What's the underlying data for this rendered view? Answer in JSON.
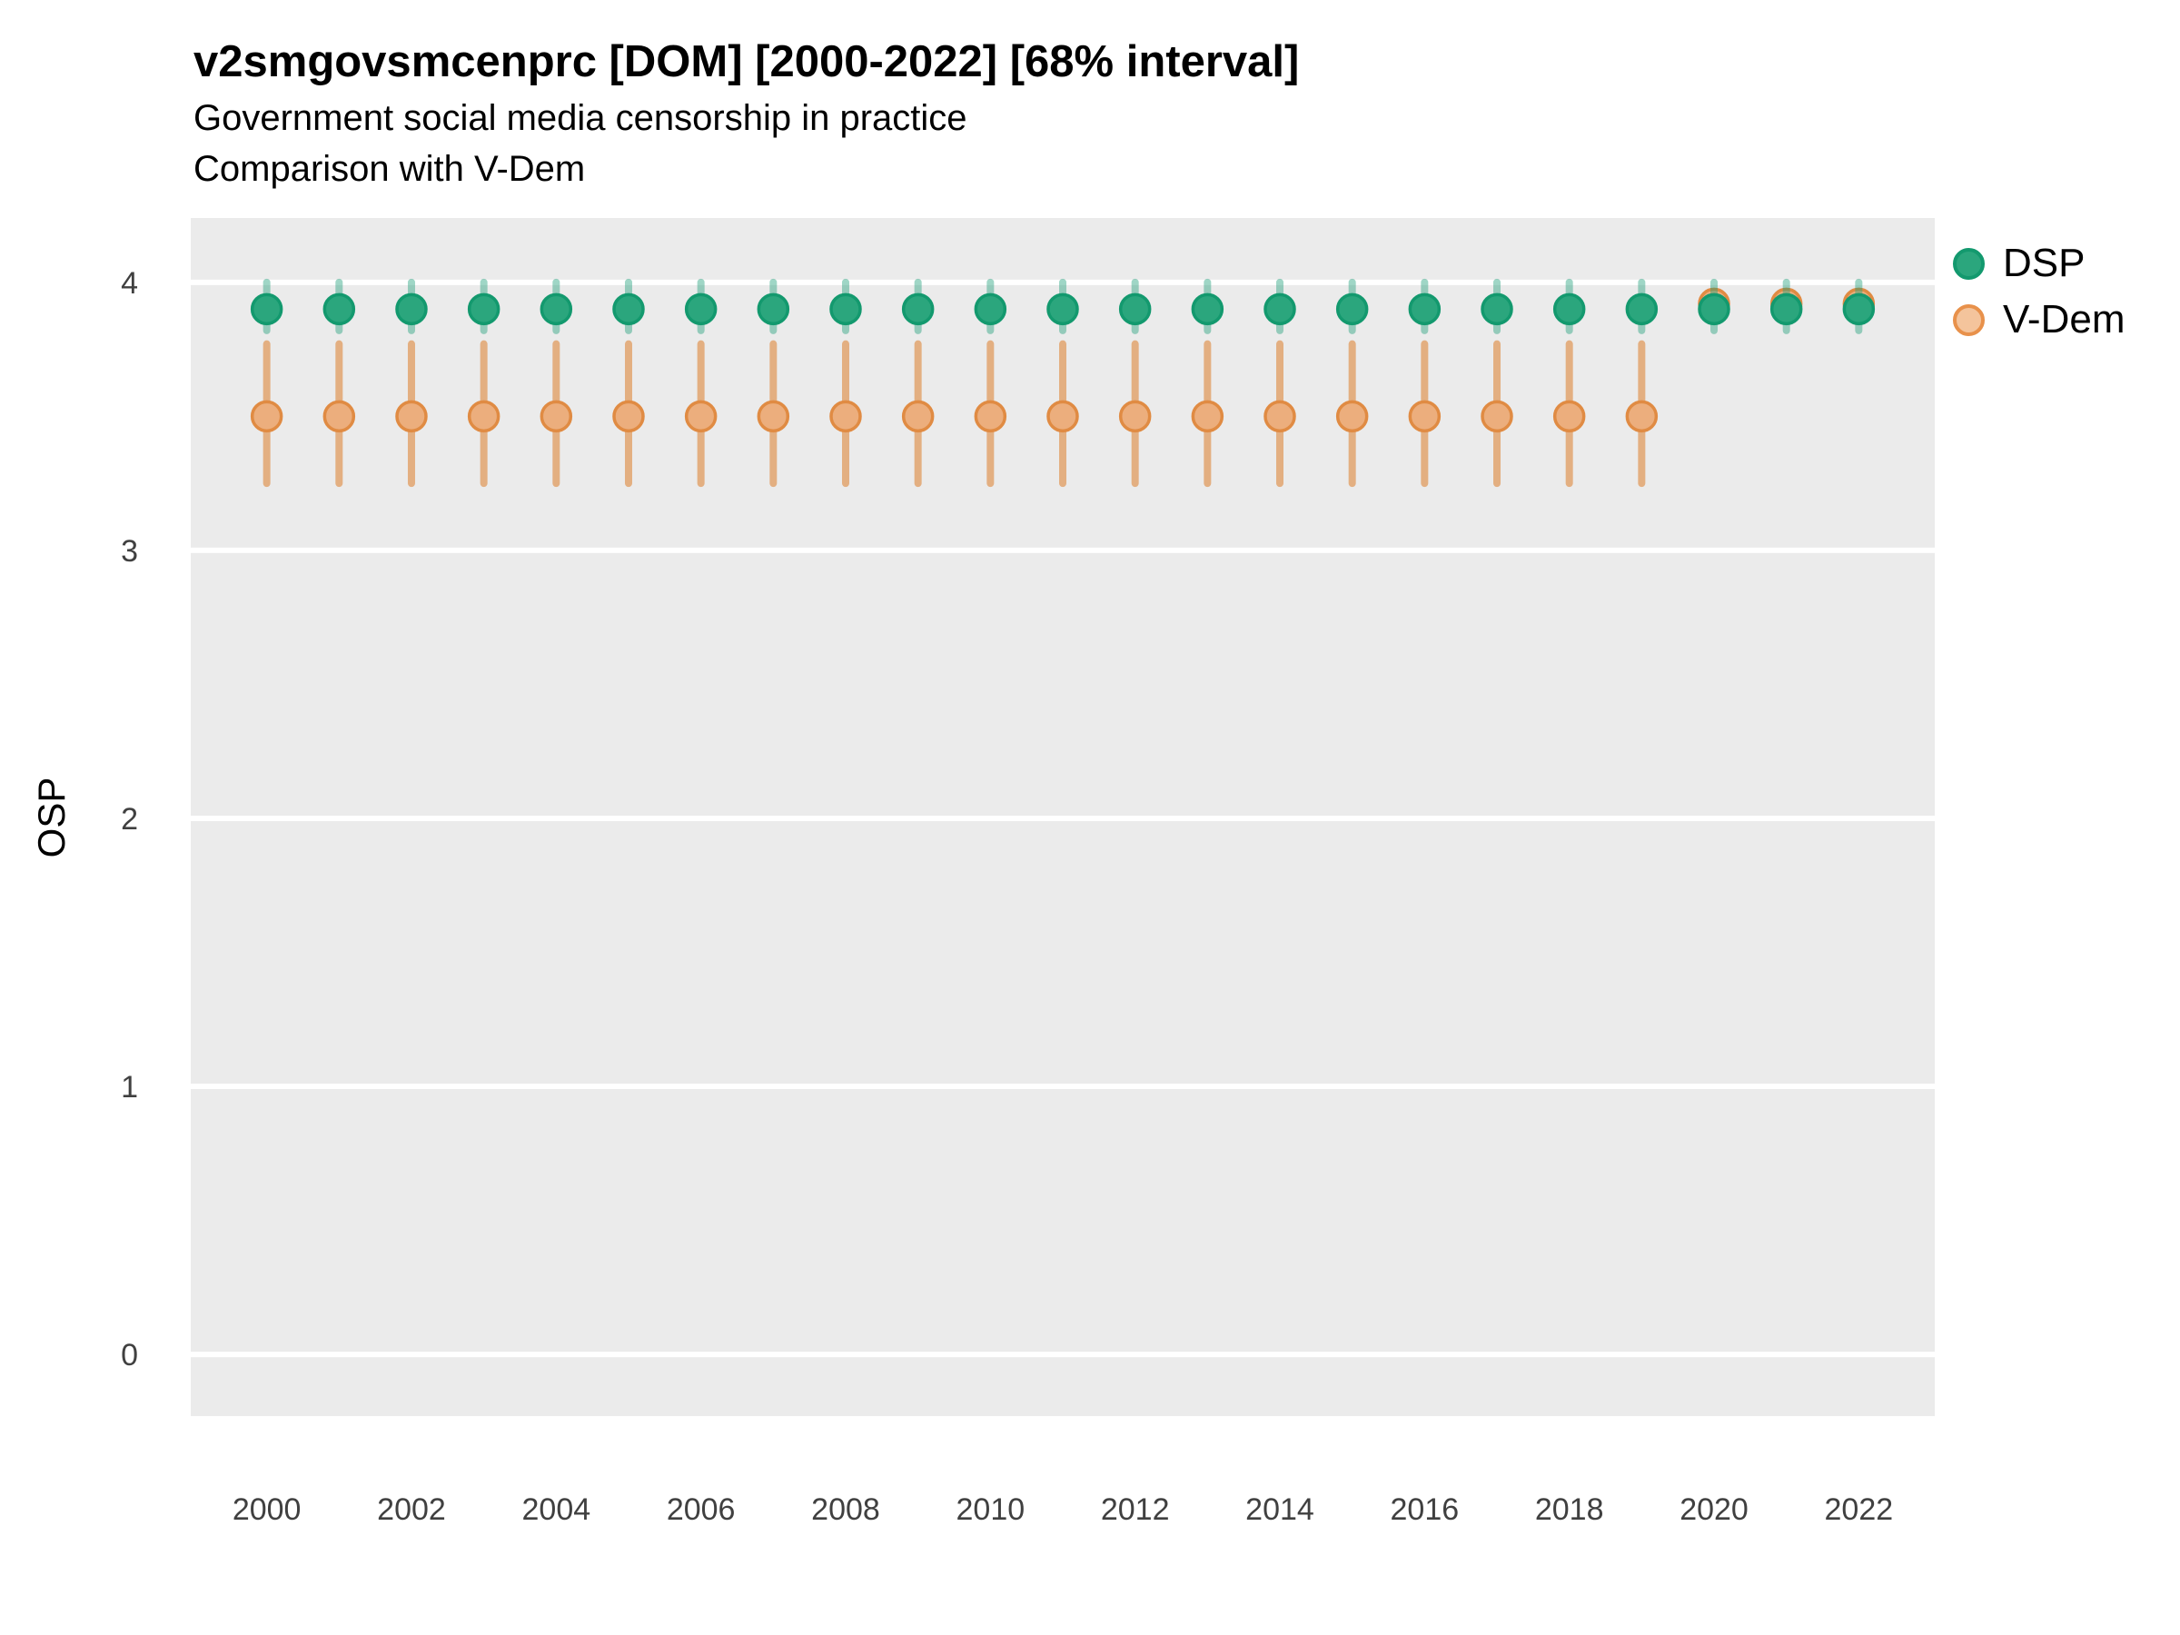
{
  "chart_data": {
    "type": "scatter",
    "title": "v2smgovsmcenprc [DOM] [2000-2022] [68% interval]",
    "subtitle": "Government social media censorship in practice",
    "subtitle2": "Comparison with V-Dem",
    "ylabel": "OSP",
    "xlabel": "",
    "legend_position": "right",
    "grid": "major-horizontal-only",
    "ylim": [
      -0.23,
      4.24
    ],
    "xlim": [
      1998.95,
      2023.05
    ],
    "y_ticks": [
      0,
      1,
      2,
      3,
      4
    ],
    "x_ticks": [
      2000,
      2002,
      2004,
      2006,
      2008,
      2010,
      2012,
      2014,
      2016,
      2018,
      2020,
      2022
    ],
    "years": [
      2000,
      2001,
      2002,
      2003,
      2004,
      2005,
      2006,
      2007,
      2008,
      2009,
      2010,
      2011,
      2012,
      2013,
      2014,
      2015,
      2016,
      2017,
      2018,
      2019,
      2020,
      2021,
      2022
    ],
    "interval_label": "68% interval",
    "series": [
      {
        "name": "DSP",
        "values": [
          3.9,
          3.9,
          3.9,
          3.9,
          3.9,
          3.9,
          3.9,
          3.9,
          3.9,
          3.9,
          3.9,
          3.9,
          3.9,
          3.9,
          3.9,
          3.9,
          3.9,
          3.9,
          3.9,
          3.9,
          3.9,
          3.9,
          3.9
        ],
        "lo": [
          3.82,
          3.82,
          3.82,
          3.82,
          3.82,
          3.82,
          3.82,
          3.82,
          3.82,
          3.82,
          3.82,
          3.82,
          3.82,
          3.82,
          3.82,
          3.82,
          3.82,
          3.82,
          3.82,
          3.82,
          3.82,
          3.82,
          3.82
        ],
        "hi": [
          4.0,
          4.0,
          4.0,
          4.0,
          4.0,
          4.0,
          4.0,
          4.0,
          4.0,
          4.0,
          4.0,
          4.0,
          4.0,
          4.0,
          4.0,
          4.0,
          4.0,
          4.0,
          4.0,
          4.0,
          4.0,
          4.0,
          4.0
        ],
        "color": "#13996E",
        "fill": "#2BA67D",
        "bar": "rgba(27,158,119,0.42)",
        "legend_fill": "#2BA67D",
        "legend_stroke": "#13996E"
      },
      {
        "name": "V-Dem",
        "values": [
          3.5,
          3.5,
          3.5,
          3.5,
          3.5,
          3.5,
          3.5,
          3.5,
          3.5,
          3.5,
          3.5,
          3.5,
          3.5,
          3.5,
          3.5,
          3.5,
          3.5,
          3.5,
          3.5,
          3.5,
          3.92,
          3.92,
          3.92
        ],
        "lo": [
          3.25,
          3.25,
          3.25,
          3.25,
          3.25,
          3.25,
          3.25,
          3.25,
          3.25,
          3.25,
          3.25,
          3.25,
          3.25,
          3.25,
          3.25,
          3.25,
          3.25,
          3.25,
          3.25,
          3.25,
          null,
          null,
          null
        ],
        "hi": [
          3.77,
          3.77,
          3.77,
          3.77,
          3.77,
          3.77,
          3.77,
          3.77,
          3.77,
          3.77,
          3.77,
          3.77,
          3.77,
          3.77,
          3.77,
          3.77,
          3.77,
          3.77,
          3.77,
          3.77,
          null,
          null,
          null
        ],
        "color": "#E08B43",
        "fill": "#ECAE7D",
        "bar": "rgba(222,138,65,0.62)",
        "legend_fill": "#F4C49C",
        "legend_stroke": "#E8914B"
      }
    ],
    "colors": {
      "panel_background": "#EBEBEB",
      "gridline": "#FFFFFF",
      "axis_text": "#404040",
      "title_text": "#000000"
    }
  }
}
